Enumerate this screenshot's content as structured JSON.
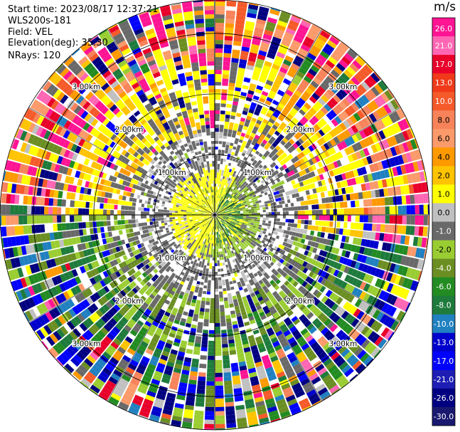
{
  "header": {
    "start_time": "Start time: 2023/08/17 12:37:21",
    "instrument": "WLS200s-181",
    "field": "Field: VEL",
    "elevation": "Elevation(deg): 35.30",
    "nrays": "NRays: 120"
  },
  "chart_data": {
    "type": "heatmap",
    "projection": "polar",
    "field": "VEL",
    "units": "m/s",
    "n_rays": 120,
    "elevation_deg": 35.3,
    "range_rings_km": [
      1.0,
      2.0,
      3.0
    ],
    "range_ring_labels": [
      "1.00km",
      "2.00km",
      "3.00km"
    ],
    "max_range_km": 3.55,
    "colorbar": {
      "label": "m/s",
      "ticks": [
        "26.0",
        "21.0",
        "17.0",
        "13.0",
        "10.0",
        "8.0",
        "6.0",
        "4.0",
        "2.0",
        "1.0",
        "0.0",
        "-1.0",
        "-2.0",
        "-4.0",
        "-6.0",
        "-8.0",
        "-10.0",
        "-13.0",
        "-17.0",
        "-21.0",
        "-26.0",
        "-30.0"
      ],
      "colors": [
        "#ff1493",
        "#ff66b3",
        "#e8002a",
        "#f03a1a",
        "#f55a2a",
        "#f7835a",
        "#fb9a6a",
        "#ff9900",
        "#ffc300",
        "#ffff00",
        "#c0c0c0",
        "#696969",
        "#9acd32",
        "#6b8e23",
        "#228b22",
        "#1e7b3c",
        "#2080c0",
        "#0000cd",
        "#0000ff",
        "#1e1eb4",
        "#000080",
        "#191970"
      ]
    },
    "zones": [
      {
        "range_km": [
          0.0,
          0.6
        ],
        "description_values": "yellow north/west, olive-green east, mixed center"
      },
      {
        "range_km": [
          0.6,
          1.8
        ],
        "description_values": "mostly gray near-zero velocities with green lower half"
      },
      {
        "range_km": [
          1.8,
          2.4
        ],
        "description_values": "yellow band upper half, olive/green lower half"
      },
      {
        "range_km": [
          2.4,
          3.55
        ],
        "description_values": "noisy mixed colors, orange/yellow dominant upper, green/blue dominant lower"
      }
    ]
  }
}
